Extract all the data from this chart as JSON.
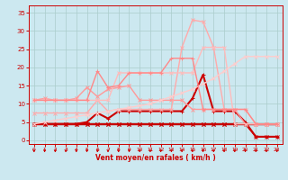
{
  "x": [
    0,
    1,
    2,
    3,
    4,
    5,
    6,
    7,
    8,
    9,
    10,
    11,
    12,
    13,
    14,
    15,
    16,
    17,
    18,
    19,
    20,
    21,
    22,
    23
  ],
  "background_color": "#cce8f0",
  "grid_color": "#aacccc",
  "xlabel": "Vent moyen/en rafales ( km/h )",
  "xlabel_color": "#cc0000",
  "tick_color": "#cc0000",
  "ylim": [
    -1,
    37
  ],
  "yticks": [
    0,
    5,
    10,
    15,
    20,
    25,
    30,
    35
  ],
  "series": [
    {
      "label": "flat_dark",
      "color": "#bb0000",
      "marker": "x",
      "markersize": 2.5,
      "linewidth": 1.0,
      "y": [
        4.5,
        4.5,
        4.5,
        4.5,
        4.5,
        4.5,
        4.5,
        4.5,
        4.5,
        4.5,
        4.5,
        4.5,
        4.5,
        4.5,
        4.5,
        4.5,
        4.5,
        4.5,
        4.5,
        4.5,
        4.5,
        4.5,
        4.5,
        4.5
      ]
    },
    {
      "label": "decreasing_stair",
      "color": "#cc0000",
      "marker": "x",
      "markersize": 2.5,
      "linewidth": 1.2,
      "y": [
        4.5,
        4.5,
        4.5,
        4.5,
        4.5,
        4.5,
        4.5,
        4.5,
        4.5,
        4.5,
        4.5,
        4.5,
        4.5,
        4.5,
        4.5,
        4.5,
        4.5,
        4.5,
        4.5,
        4.5,
        4.5,
        1.0,
        1.0,
        1.0
      ]
    },
    {
      "label": "spike_dark",
      "color": "#cc0000",
      "marker": "+",
      "markersize": 3,
      "linewidth": 1.5,
      "y": [
        4.5,
        4.5,
        4.5,
        4.5,
        4.5,
        5.0,
        7.5,
        6.0,
        8.0,
        8.0,
        8.0,
        8.0,
        8.0,
        8.0,
        8.0,
        11.5,
        18.0,
        8.0,
        8.0,
        8.0,
        5.0,
        1.0,
        1.0,
        1.0
      ]
    },
    {
      "label": "salmon_hump",
      "color": "#ff9999",
      "marker": "x",
      "markersize": 2.5,
      "linewidth": 1.0,
      "y": [
        11.0,
        11.5,
        11.0,
        11.0,
        11.5,
        14.5,
        12.0,
        14.0,
        14.5,
        15.0,
        11.0,
        11.0,
        11.0,
        11.0,
        11.0,
        8.5,
        8.5,
        8.5,
        8.5,
        8.5,
        4.5,
        4.5,
        4.5,
        4.5
      ]
    },
    {
      "label": "salmon_bigpeak",
      "color": "#ffaaaa",
      "marker": "x",
      "markersize": 2.5,
      "linewidth": 1.0,
      "y": [
        7.5,
        7.5,
        7.5,
        7.5,
        7.5,
        7.5,
        11.0,
        8.0,
        8.5,
        8.5,
        8.5,
        8.5,
        8.5,
        8.5,
        25.5,
        33.0,
        32.5,
        25.5,
        8.5,
        8.5,
        8.5,
        4.5,
        4.5,
        4.5
      ]
    },
    {
      "label": "salmon_plateau",
      "color": "#ffbbbb",
      "marker": "x",
      "markersize": 2.5,
      "linewidth": 1.0,
      "y": [
        11.0,
        11.0,
        11.0,
        11.0,
        11.0,
        11.0,
        11.0,
        11.0,
        18.5,
        18.5,
        18.5,
        18.5,
        18.5,
        18.5,
        18.5,
        18.5,
        25.5,
        25.5,
        25.5,
        4.5,
        4.5,
        4.5,
        4.5,
        4.5
      ]
    },
    {
      "label": "pink_diagonal",
      "color": "#ffcccc",
      "marker": "x",
      "markersize": 2.5,
      "linewidth": 1.0,
      "y": [
        4.5,
        5.0,
        5.5,
        6.0,
        6.5,
        7.0,
        7.5,
        8.0,
        8.5,
        9.0,
        9.5,
        10.0,
        11.0,
        12.0,
        13.0,
        14.0,
        15.5,
        17.0,
        19.0,
        21.0,
        23.0,
        23.0,
        23.0,
        23.0
      ]
    },
    {
      "label": "salmon_22peak",
      "color": "#ff8888",
      "marker": "+",
      "markersize": 2.5,
      "linewidth": 1.0,
      "y": [
        11.0,
        11.0,
        11.0,
        11.0,
        11.0,
        11.0,
        19.0,
        14.5,
        15.0,
        18.5,
        18.5,
        18.5,
        18.5,
        22.5,
        22.5,
        22.5,
        8.5,
        8.5,
        8.5,
        8.5,
        8.5,
        4.5,
        4.5,
        4.5
      ]
    }
  ],
  "arrow_color": "#cc0000"
}
